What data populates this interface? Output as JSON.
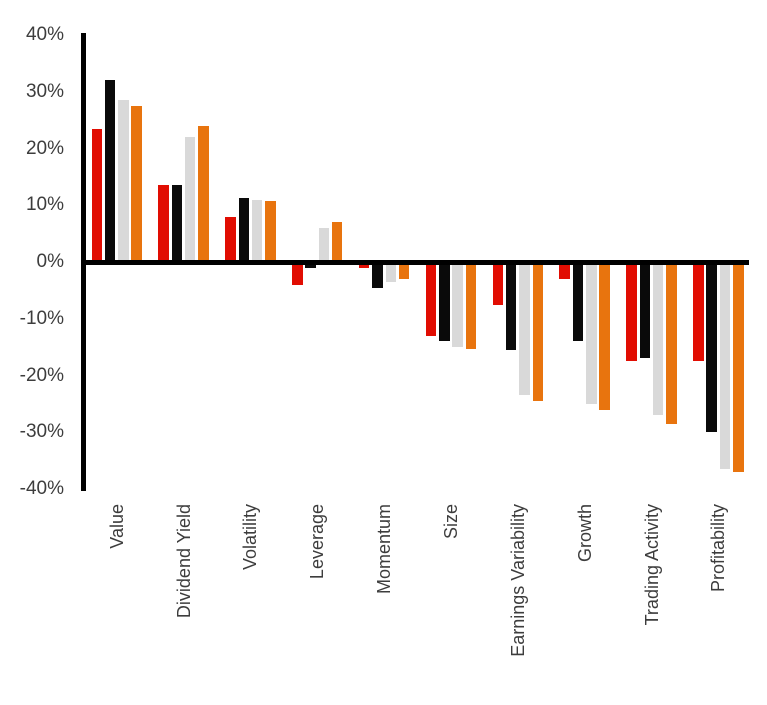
{
  "chart_data": {
    "type": "bar",
    "title": "",
    "xlabel": "",
    "ylabel": "",
    "categories": [
      "Value",
      "Dividend Yield",
      "Volatility",
      "Leverage",
      "Momentum",
      "Size",
      "Earnings Variability",
      "Growth",
      "Trading Activity",
      "Profitability"
    ],
    "series": [
      {
        "name": "red",
        "color": "#e10d02",
        "values": [
          23.5,
          13.5,
          8.0,
          -4.0,
          -1.0,
          -13.0,
          -7.5,
          -3.0,
          -17.5,
          -17.5
        ]
      },
      {
        "name": "black",
        "color": "#0a0a0a",
        "values": [
          32.0,
          13.5,
          11.3,
          -1.0,
          -4.5,
          -14.0,
          -15.5,
          -14.0,
          -17.0,
          -30.0
        ]
      },
      {
        "name": "gray",
        "color": "#d9d9d9",
        "values": [
          28.5,
          22.0,
          11.0,
          6.0,
          -3.5,
          -15.0,
          -23.5,
          -25.0,
          -27.0,
          -36.5
        ]
      },
      {
        "name": "orange",
        "color": "#e8740e",
        "values": [
          27.5,
          24.0,
          10.7,
          7.0,
          -3.0,
          -15.3,
          -24.5,
          -26.0,
          -28.5,
          -37.0
        ]
      }
    ],
    "ylim": [
      -40,
      40
    ],
    "ytick_step": 10,
    "ytick_labels": [
      "40%",
      "30%",
      "20%",
      "10%",
      "0%",
      "-10%",
      "-20%",
      "-30%",
      "-40%"
    ],
    "ytick_values": [
      40,
      30,
      20,
      10,
      0,
      -10,
      -20,
      -30,
      -40
    ],
    "grid": false,
    "legend": false,
    "bar_orientation": "vertical",
    "category_label_rotation_deg": -90
  },
  "style": {
    "background": "#ffffff",
    "axis_color": "#000000",
    "tick_label_color": "#3d3d3d"
  }
}
